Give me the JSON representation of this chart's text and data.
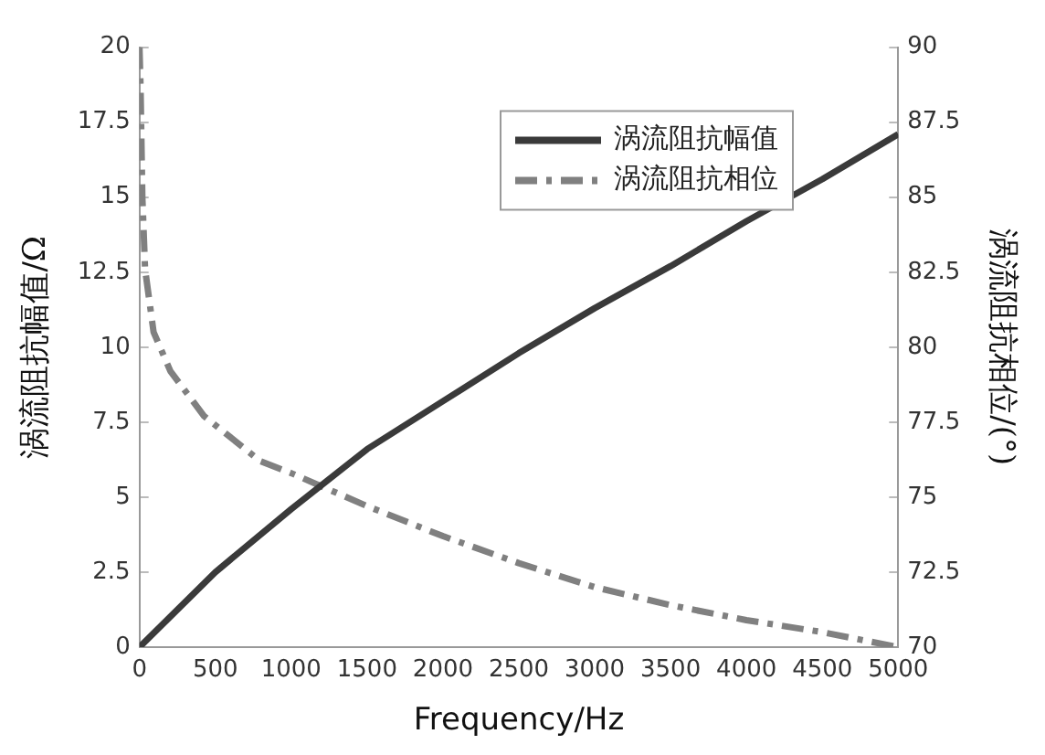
{
  "chart_data": {
    "type": "line",
    "xlabel": "Frequency/Hz",
    "ylabel": "涡流阻抗幅值/Ω",
    "y2label": "涡流阻抗相位/(°)",
    "xlim": [
      0,
      5000
    ],
    "xticks": [
      0,
      500,
      1000,
      1500,
      2000,
      2500,
      3000,
      3500,
      4000,
      4500,
      5000
    ],
    "ylim": [
      0,
      20
    ],
    "yticks": [
      0,
      2.5,
      5,
      7.5,
      10,
      12.5,
      15,
      17.5,
      20
    ],
    "y2lim": [
      70,
      90
    ],
    "y2ticks": [
      70,
      72.5,
      75,
      77.5,
      80,
      82.5,
      85,
      87.5,
      90
    ],
    "legend": "top",
    "grid": false,
    "series": [
      {
        "name": "涡流阻抗幅值",
        "color": "#3a3a3a",
        "line_style": "solid",
        "x": [
          0,
          500,
          1000,
          1500,
          2000,
          2500,
          3000,
          3500,
          4000,
          4500,
          5000
        ],
        "values": [
          0,
          2.5,
          4.6,
          6.6,
          8.2,
          9.8,
          11.3,
          12.7,
          14.2,
          15.6,
          17.1
        ]
      },
      {
        "name": "涡流阻抗相位",
        "color": "#808080",
        "line_style": "dashdot",
        "axis": "y2",
        "x": [
          0,
          7,
          19,
          37,
          93,
          204,
          426,
          796,
          1000,
          1500,
          2000,
          2500,
          3000,
          3500,
          4000,
          4500,
          5000
        ],
        "values": [
          90,
          88.7,
          85,
          82.6,
          80.5,
          79.2,
          77.7,
          76.2,
          75.8,
          74.7,
          73.7,
          72.8,
          72,
          71.4,
          70.9,
          70.5,
          70
        ]
      }
    ]
  }
}
